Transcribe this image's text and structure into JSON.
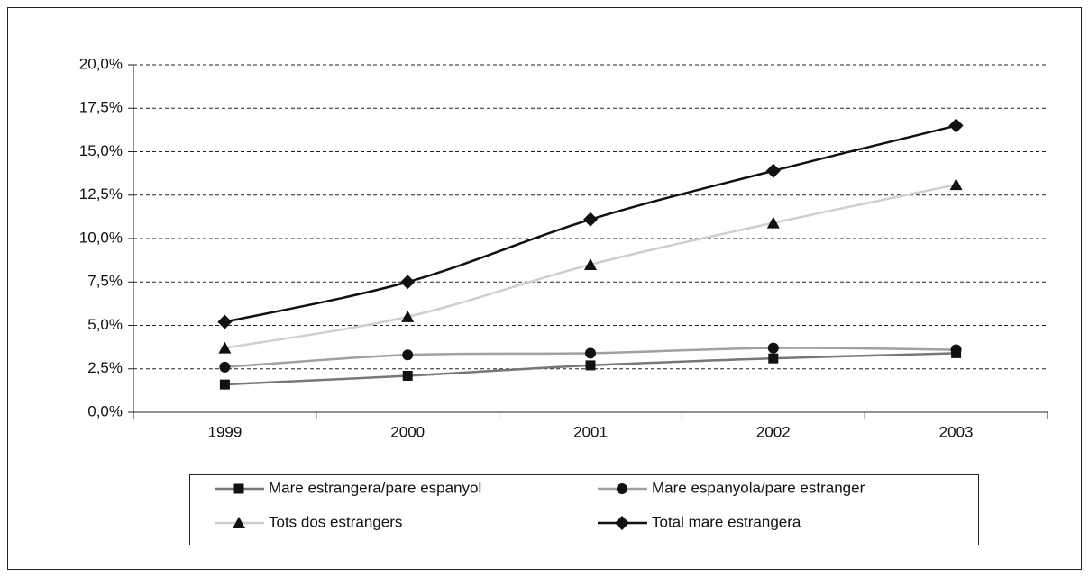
{
  "chart_data": {
    "type": "line",
    "categories": [
      "1999",
      "2000",
      "2001",
      "2002",
      "2003"
    ],
    "series": [
      {
        "name": "Mare estrangera/pare espanyol",
        "color": "#777777",
        "marker": "square",
        "values": [
          1.6,
          2.1,
          2.7,
          3.1,
          3.4
        ]
      },
      {
        "name": "Mare espanyola/pare estranger",
        "color": "#a0a0a0",
        "marker": "circle",
        "values": [
          2.6,
          3.3,
          3.4,
          3.7,
          3.6
        ]
      },
      {
        "name": "Tots dos estrangers",
        "color": "#cfcfcf",
        "marker": "triangle",
        "values": [
          3.7,
          5.5,
          8.5,
          10.9,
          13.1
        ]
      },
      {
        "name": "Total mare estrangera",
        "color": "#111111",
        "marker": "diamond",
        "values": [
          5.2,
          7.5,
          11.1,
          13.9,
          16.5
        ]
      }
    ],
    "ylim": [
      0,
      20
    ],
    "yticks": [
      {
        "value": 0,
        "label": "0,0%"
      },
      {
        "value": 2.5,
        "label": "2,5%"
      },
      {
        "value": 5,
        "label": "5,0%"
      },
      {
        "value": 7.5,
        "label": "7,5%"
      },
      {
        "value": 10,
        "label": "10,0%"
      },
      {
        "value": 12.5,
        "label": "12,5%"
      },
      {
        "value": 15,
        "label": "15,0%"
      },
      {
        "value": 17.5,
        "label": "17,5%"
      },
      {
        "value": 20,
        "label": "20,0%"
      }
    ],
    "grid": true
  }
}
